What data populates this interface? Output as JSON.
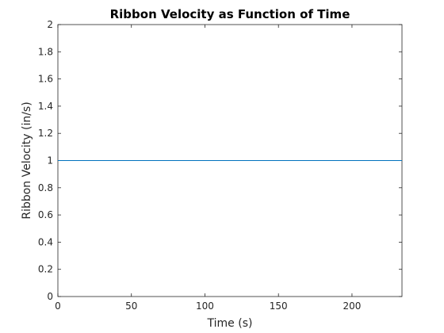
{
  "chart_data": {
    "type": "line",
    "title": "Ribbon Velocity as Function of Time",
    "xlabel": "Time (s)",
    "ylabel": "Ribbon Velocity (in/s)",
    "xlim": [
      0,
      234
    ],
    "ylim": [
      0,
      2
    ],
    "x_ticks": [
      0,
      50,
      100,
      150,
      200
    ],
    "y_ticks": [
      0,
      0.2,
      0.4,
      0.6,
      0.8,
      1,
      1.2,
      1.4,
      1.6,
      1.8,
      2
    ],
    "x_tick_labels": [
      "0",
      "50",
      "100",
      "150",
      "200"
    ],
    "y_tick_labels": [
      "0",
      "0.2",
      "0.4",
      "0.6",
      "0.8",
      "1",
      "1.2",
      "1.4",
      "1.6",
      "1.8",
      "2"
    ],
    "grid": false,
    "series": [
      {
        "x": [
          0,
          234
        ],
        "y": [
          1,
          1
        ],
        "color": "#0072bd"
      }
    ]
  }
}
